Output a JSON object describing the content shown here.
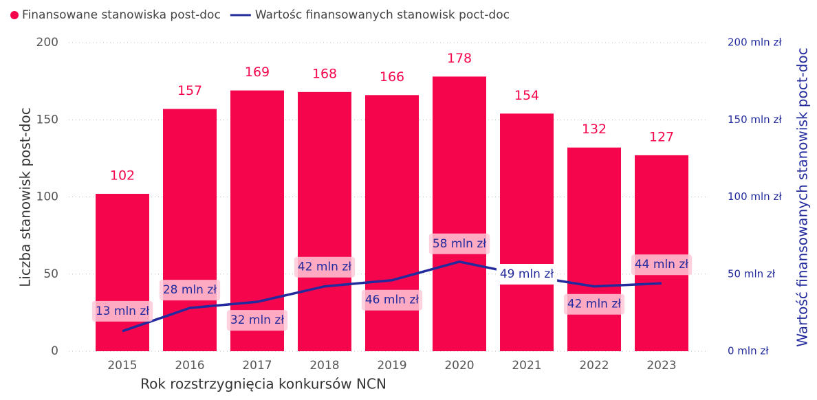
{
  "chart_data": {
    "type": "combo",
    "x_label": "Rok rozstrzygnięcia konkursów NCN",
    "y_label": "Liczba stanowisk post-doc",
    "y2_label": "Wartość finansowanych stanowisk poct-doc",
    "categories": [
      "2015",
      "2016",
      "2017",
      "2018",
      "2019",
      "2020",
      "2021",
      "2022",
      "2023"
    ],
    "series": [
      {
        "name": "Finansowane stanowiska post-doc",
        "type": "bar",
        "color": "#f5064c",
        "values": [
          102,
          157,
          169,
          168,
          166,
          178,
          154,
          132,
          127
        ]
      },
      {
        "name": "Wartośc finansowanych stanowisk poct-doc",
        "type": "line",
        "axis": "y2",
        "color": "#222a9c",
        "values": [
          13,
          28,
          32,
          42,
          46,
          58,
          49,
          42,
          44
        ],
        "value_labels": [
          "13 mln zł",
          "28 mln zł",
          "32 mln zł",
          "42 mln zł",
          "46 mln zł",
          "58 mln zł",
          "49 mln zł",
          "42 mln zł",
          "44 mln zł"
        ]
      }
    ],
    "ylim": [
      0,
      200
    ],
    "yticks": [
      0,
      50,
      100,
      150,
      200
    ],
    "y2lim": [
      0,
      200
    ],
    "y2ticks": [
      {
        "value": 0,
        "label": "0 mln zł"
      },
      {
        "value": 50,
        "label": "50 mln zł"
      },
      {
        "value": 100,
        "label": "100 mln zł"
      },
      {
        "value": 150,
        "label": "150 mln zł"
      },
      {
        "value": 200,
        "label": "200 mln zł"
      }
    ],
    "grid": true,
    "legend": "top-left"
  }
}
